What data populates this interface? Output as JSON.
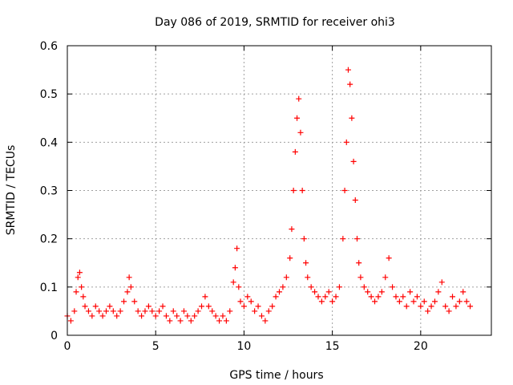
{
  "chart_data": {
    "type": "scatter",
    "title": "Day 086 of 2019, SRMTID for receiver ohi3",
    "xlabel": "GPS time / hours",
    "ylabel": "SRMTID / TECUs",
    "xlim": [
      0,
      24
    ],
    "ylim": [
      0,
      0.6
    ],
    "x_ticks": [
      0,
      5,
      10,
      15,
      20
    ],
    "x_tick_labels": [
      "0",
      "5",
      "10",
      "15",
      "20"
    ],
    "y_ticks": [
      0,
      0.1,
      0.2,
      0.3,
      0.4,
      0.5,
      0.6
    ],
    "y_tick_labels": [
      "0",
      "0.1",
      "0.2",
      "0.3",
      "0.4",
      "0.5",
      "0.6"
    ],
    "grid": true,
    "marker": "+",
    "color": "#ff0000",
    "series": [
      {
        "name": "SRMTID",
        "x": [
          0.0,
          0.2,
          0.4,
          0.5,
          0.6,
          0.7,
          0.8,
          0.9,
          1.0,
          1.2,
          1.4,
          1.6,
          1.8,
          2.0,
          2.2,
          2.4,
          2.6,
          2.8,
          3.0,
          3.2,
          3.4,
          3.5,
          3.6,
          3.8,
          4.0,
          4.2,
          4.4,
          4.6,
          4.8,
          5.0,
          5.2,
          5.4,
          5.6,
          5.8,
          6.0,
          6.2,
          6.4,
          6.6,
          6.8,
          7.0,
          7.2,
          7.4,
          7.6,
          7.8,
          8.0,
          8.2,
          8.4,
          8.6,
          8.8,
          9.0,
          9.2,
          9.4,
          9.5,
          9.6,
          9.7,
          9.8,
          10.0,
          10.2,
          10.4,
          10.6,
          10.8,
          11.0,
          11.2,
          11.4,
          11.6,
          11.8,
          12.0,
          12.2,
          12.4,
          12.6,
          12.7,
          12.8,
          12.9,
          13.0,
          13.1,
          13.2,
          13.3,
          13.4,
          13.5,
          13.6,
          13.8,
          14.0,
          14.2,
          14.4,
          14.6,
          14.8,
          15.0,
          15.2,
          15.4,
          15.6,
          15.7,
          15.8,
          15.9,
          16.0,
          16.1,
          16.2,
          16.3,
          16.4,
          16.5,
          16.6,
          16.8,
          17.0,
          17.2,
          17.4,
          17.6,
          17.8,
          18.0,
          18.2,
          18.4,
          18.6,
          18.8,
          19.0,
          19.2,
          19.4,
          19.6,
          19.8,
          20.0,
          20.2,
          20.4,
          20.6,
          20.8,
          21.0,
          21.2,
          21.4,
          21.6,
          21.8,
          22.0,
          22.2,
          22.4,
          22.6,
          22.8
        ],
        "y": [
          0.04,
          0.03,
          0.05,
          0.09,
          0.12,
          0.13,
          0.1,
          0.08,
          0.06,
          0.05,
          0.04,
          0.06,
          0.05,
          0.04,
          0.05,
          0.06,
          0.05,
          0.04,
          0.05,
          0.07,
          0.09,
          0.12,
          0.1,
          0.07,
          0.05,
          0.04,
          0.05,
          0.06,
          0.05,
          0.04,
          0.05,
          0.06,
          0.04,
          0.03,
          0.05,
          0.04,
          0.03,
          0.05,
          0.04,
          0.03,
          0.04,
          0.05,
          0.06,
          0.08,
          0.06,
          0.05,
          0.04,
          0.03,
          0.04,
          0.03,
          0.05,
          0.11,
          0.14,
          0.18,
          0.1,
          0.07,
          0.06,
          0.08,
          0.07,
          0.05,
          0.06,
          0.04,
          0.03,
          0.05,
          0.06,
          0.08,
          0.09,
          0.1,
          0.12,
          0.16,
          0.22,
          0.3,
          0.38,
          0.45,
          0.49,
          0.42,
          0.3,
          0.2,
          0.15,
          0.12,
          0.1,
          0.09,
          0.08,
          0.07,
          0.08,
          0.09,
          0.07,
          0.08,
          0.1,
          0.2,
          0.3,
          0.4,
          0.55,
          0.52,
          0.45,
          0.36,
          0.28,
          0.2,
          0.15,
          0.12,
          0.1,
          0.09,
          0.08,
          0.07,
          0.08,
          0.09,
          0.12,
          0.16,
          0.1,
          0.08,
          0.07,
          0.08,
          0.06,
          0.09,
          0.07,
          0.08,
          0.06,
          0.07,
          0.05,
          0.06,
          0.07,
          0.09,
          0.11,
          0.06,
          0.05,
          0.08,
          0.06,
          0.07,
          0.09,
          0.07,
          0.06
        ]
      }
    ]
  }
}
